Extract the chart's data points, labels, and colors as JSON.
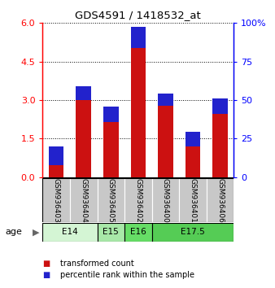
{
  "title": "GDS4591 / 1418532_at",
  "samples": [
    "GSM936403",
    "GSM936404",
    "GSM936405",
    "GSM936402",
    "GSM936400",
    "GSM936401",
    "GSM936406"
  ],
  "transformed_counts": [
    1.2,
    3.55,
    2.75,
    5.85,
    3.25,
    1.75,
    3.05
  ],
  "percentile_ranks_scaled": [
    0.12,
    0.09,
    0.1,
    0.135,
    0.08,
    0.09,
    0.1
  ],
  "age_groups": [
    {
      "label": "E14",
      "start": 0,
      "end": 2,
      "color": "#d4f5d4"
    },
    {
      "label": "E15",
      "start": 2,
      "end": 3,
      "color": "#a8e8a8"
    },
    {
      "label": "E16",
      "start": 3,
      "end": 4,
      "color": "#66dd66"
    },
    {
      "label": "E17.5",
      "start": 4,
      "end": 7,
      "color": "#55cc55"
    }
  ],
  "bar_color_red": "#cc1111",
  "bar_color_blue": "#2222cc",
  "ylim_left": [
    0,
    6
  ],
  "ylim_right": [
    0,
    100
  ],
  "yticks_left": [
    0,
    1.5,
    3,
    4.5,
    6
  ],
  "yticks_right": [
    0,
    25,
    50,
    75,
    100
  ],
  "bar_width": 0.55,
  "bg_plot": "#ffffff",
  "bg_sample": "#c8c8c8",
  "legend_label_red": "transformed count",
  "legend_label_blue": "percentile rank within the sample",
  "fig_width": 3.38,
  "fig_height": 3.54,
  "dpi": 100
}
